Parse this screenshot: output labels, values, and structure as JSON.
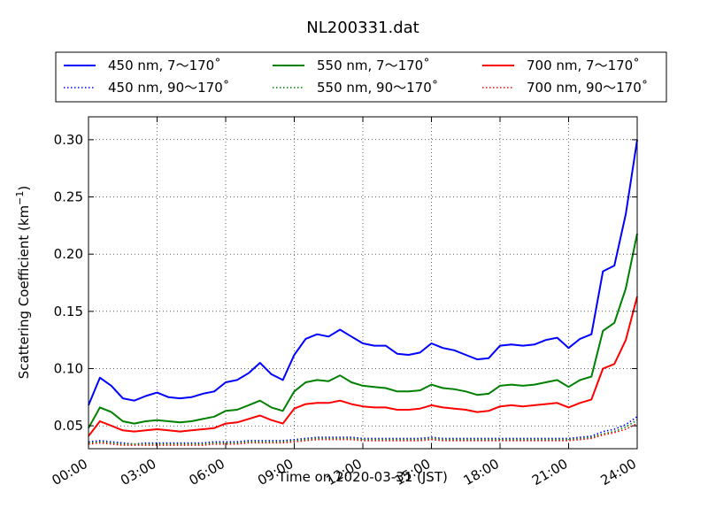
{
  "chart_data": {
    "type": "line",
    "title": "NL200331.dat",
    "xlabel": "Time on 2020-03-31 (JST)",
    "ylabel": "Scattering Coefficient (km",
    "ylabel_exponent": "−1",
    "ylabel_suffix": ")",
    "xlim": [
      "00:00",
      "24:00"
    ],
    "ylim": [
      0.03,
      0.32
    ],
    "grid": true,
    "legend_placement": "top, above plot",
    "x_ticks": [
      "00:00",
      "03:00",
      "06:00",
      "09:00",
      "12:00",
      "15:00",
      "18:00",
      "21:00",
      "24:00"
    ],
    "y_ticks": [
      "0.05",
      "0.10",
      "0.15",
      "0.20",
      "0.25",
      "0.30"
    ],
    "x": [
      "00:00",
      "00:30",
      "01:00",
      "01:30",
      "02:00",
      "02:30",
      "03:00",
      "03:30",
      "04:00",
      "04:30",
      "05:00",
      "05:30",
      "06:00",
      "06:30",
      "07:00",
      "07:30",
      "08:00",
      "08:30",
      "09:00",
      "09:30",
      "10:00",
      "10:30",
      "11:00",
      "11:30",
      "12:00",
      "12:30",
      "13:00",
      "13:30",
      "14:00",
      "14:30",
      "15:00",
      "15:30",
      "16:00",
      "16:30",
      "17:00",
      "17:30",
      "18:00",
      "18:30",
      "19:00",
      "19:30",
      "20:00",
      "20:30",
      "21:00",
      "21:30",
      "22:00",
      "22:30",
      "23:00",
      "23:30",
      "24:00"
    ],
    "series": [
      {
        "name": "450 nm, 7～170˚",
        "color": "#0000ff",
        "style": "solid",
        "values": [
          0.068,
          0.092,
          0.085,
          0.074,
          0.072,
          0.076,
          0.079,
          0.075,
          0.074,
          0.075,
          0.078,
          0.08,
          0.088,
          0.09,
          0.096,
          0.105,
          0.095,
          0.09,
          0.112,
          0.126,
          0.13,
          0.128,
          0.134,
          0.128,
          0.122,
          0.12,
          0.12,
          0.113,
          0.112,
          0.114,
          0.122,
          0.118,
          0.116,
          0.112,
          0.108,
          0.109,
          0.12,
          0.121,
          0.12,
          0.121,
          0.125,
          0.127,
          0.118,
          0.126,
          0.13,
          0.185,
          0.19,
          0.235,
          0.3
        ]
      },
      {
        "name": "550 nm, 7～170˚",
        "color": "#008000",
        "style": "solid",
        "values": [
          0.048,
          0.066,
          0.062,
          0.054,
          0.052,
          0.054,
          0.055,
          0.054,
          0.053,
          0.054,
          0.056,
          0.058,
          0.063,
          0.064,
          0.068,
          0.072,
          0.066,
          0.063,
          0.08,
          0.088,
          0.09,
          0.089,
          0.094,
          0.088,
          0.085,
          0.084,
          0.083,
          0.08,
          0.08,
          0.081,
          0.086,
          0.083,
          0.082,
          0.08,
          0.077,
          0.078,
          0.085,
          0.086,
          0.085,
          0.086,
          0.088,
          0.09,
          0.084,
          0.09,
          0.093,
          0.133,
          0.14,
          0.17,
          0.218
        ]
      },
      {
        "name": "700 nm, 7～170˚",
        "color": "#ff0000",
        "style": "solid",
        "values": [
          0.041,
          0.054,
          0.05,
          0.046,
          0.045,
          0.046,
          0.047,
          0.046,
          0.045,
          0.046,
          0.047,
          0.048,
          0.052,
          0.053,
          0.056,
          0.059,
          0.055,
          0.052,
          0.065,
          0.069,
          0.07,
          0.07,
          0.072,
          0.069,
          0.067,
          0.066,
          0.066,
          0.064,
          0.064,
          0.065,
          0.068,
          0.066,
          0.065,
          0.064,
          0.062,
          0.063,
          0.067,
          0.068,
          0.067,
          0.068,
          0.069,
          0.07,
          0.066,
          0.07,
          0.073,
          0.1,
          0.104,
          0.125,
          0.163
        ]
      },
      {
        "name": "450 nm, 90～170˚",
        "color": "#0000ff",
        "style": "dotted",
        "values": [
          0.036,
          0.037,
          0.036,
          0.035,
          0.034,
          0.035,
          0.035,
          0.035,
          0.035,
          0.035,
          0.035,
          0.036,
          0.036,
          0.036,
          0.037,
          0.037,
          0.037,
          0.037,
          0.038,
          0.039,
          0.04,
          0.04,
          0.04,
          0.04,
          0.039,
          0.039,
          0.039,
          0.039,
          0.039,
          0.039,
          0.04,
          0.039,
          0.039,
          0.039,
          0.039,
          0.039,
          0.039,
          0.039,
          0.039,
          0.039,
          0.039,
          0.039,
          0.039,
          0.04,
          0.041,
          0.045,
          0.047,
          0.051,
          0.058
        ]
      },
      {
        "name": "550 nm, 90～170˚",
        "color": "#008000",
        "style": "dotted",
        "values": [
          0.035,
          0.036,
          0.035,
          0.034,
          0.034,
          0.034,
          0.034,
          0.034,
          0.034,
          0.034,
          0.034,
          0.035,
          0.035,
          0.035,
          0.036,
          0.036,
          0.036,
          0.036,
          0.037,
          0.038,
          0.039,
          0.039,
          0.039,
          0.039,
          0.038,
          0.038,
          0.038,
          0.038,
          0.038,
          0.038,
          0.039,
          0.038,
          0.038,
          0.038,
          0.038,
          0.038,
          0.038,
          0.038,
          0.038,
          0.038,
          0.038,
          0.038,
          0.038,
          0.039,
          0.04,
          0.043,
          0.045,
          0.049,
          0.055
        ]
      },
      {
        "name": "700 nm, 90～170˚",
        "color": "#ff0000",
        "style": "dotted",
        "values": [
          0.034,
          0.035,
          0.034,
          0.033,
          0.033,
          0.033,
          0.033,
          0.033,
          0.033,
          0.033,
          0.033,
          0.034,
          0.034,
          0.034,
          0.035,
          0.035,
          0.035,
          0.035,
          0.036,
          0.037,
          0.038,
          0.038,
          0.038,
          0.038,
          0.037,
          0.037,
          0.037,
          0.037,
          0.037,
          0.037,
          0.038,
          0.037,
          0.037,
          0.037,
          0.037,
          0.037,
          0.037,
          0.037,
          0.037,
          0.037,
          0.037,
          0.037,
          0.037,
          0.038,
          0.039,
          0.042,
          0.044,
          0.047,
          0.052
        ]
      }
    ]
  }
}
